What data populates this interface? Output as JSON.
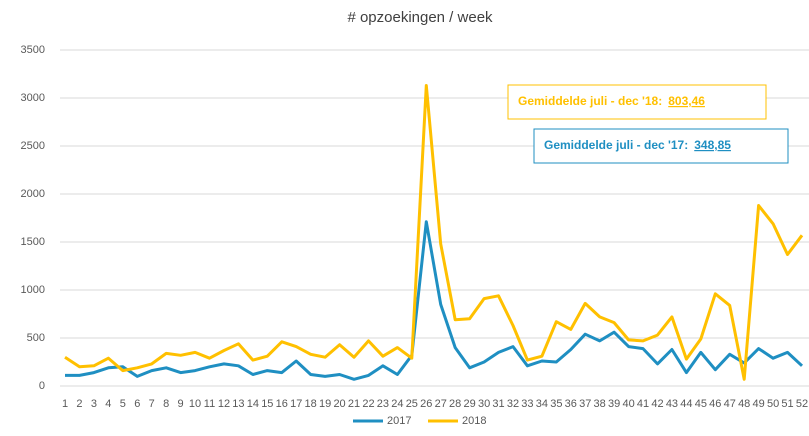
{
  "chart_data": {
    "type": "line",
    "title": "# opzoekingen / week",
    "categories": [
      1,
      2,
      3,
      4,
      5,
      6,
      7,
      8,
      9,
      10,
      11,
      12,
      13,
      14,
      15,
      16,
      17,
      18,
      19,
      20,
      21,
      22,
      23,
      24,
      25,
      26,
      27,
      28,
      29,
      30,
      31,
      32,
      33,
      34,
      35,
      36,
      37,
      38,
      39,
      40,
      41,
      42,
      43,
      44,
      45,
      46,
      47,
      48,
      49,
      50,
      51,
      52
    ],
    "series": [
      {
        "name": "2017",
        "color": "#1f8fc2",
        "values": [
          110,
          110,
          140,
          190,
          200,
          100,
          160,
          190,
          140,
          160,
          200,
          230,
          210,
          120,
          160,
          140,
          260,
          120,
          100,
          120,
          70,
          110,
          210,
          120,
          320,
          1710,
          850,
          400,
          190,
          250,
          350,
          410,
          210,
          260,
          250,
          380,
          540,
          470,
          560,
          410,
          390,
          230,
          380,
          140,
          350,
          170,
          330,
          240,
          390,
          290,
          350,
          210
        ]
      },
      {
        "name": "2018",
        "color": "#ffc000",
        "values": [
          300,
          200,
          210,
          290,
          160,
          190,
          230,
          340,
          320,
          350,
          290,
          370,
          440,
          270,
          310,
          460,
          410,
          330,
          300,
          430,
          300,
          470,
          310,
          400,
          290,
          3130,
          1480,
          690,
          700,
          910,
          940,
          630,
          270,
          310,
          670,
          590,
          860,
          720,
          660,
          480,
          470,
          530,
          720,
          280,
          490,
          960,
          840,
          70,
          1880,
          1690,
          1370,
          1570
        ]
      }
    ],
    "ylim": [
      0,
      3500
    ],
    "yticks": [
      0,
      500,
      1000,
      1500,
      2000,
      2500,
      3000,
      3500
    ],
    "grid": true,
    "legend": "bottom",
    "annotations": [
      {
        "text": "Gemiddelde juli - dec '18:",
        "value": "803,46",
        "color": "#ffc000"
      },
      {
        "text": "Gemiddelde juli - dec '17:",
        "value": "348,85",
        "color": "#1f8fc2"
      }
    ]
  }
}
